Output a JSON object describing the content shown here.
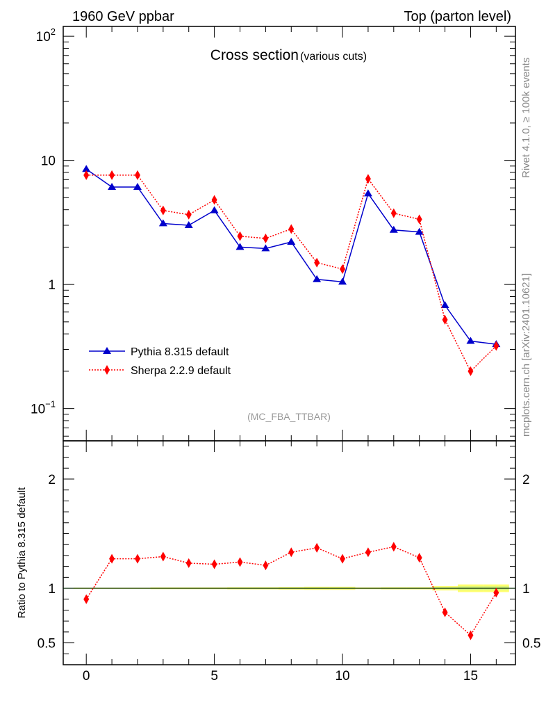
{
  "header": {
    "left": "1960 GeV ppbar",
    "right": "Top (parton level)"
  },
  "side_labels": {
    "rivet": "Rivet 4.1.0, ≥ 100k events",
    "mcplots": "mcplots.cern.ch [arXiv:2401.10621]"
  },
  "colors": {
    "pythia": "#0000cc",
    "sherpa": "#ff0000",
    "band": "#ffff55",
    "band_inner": "#c8f080",
    "reference": "#00aa00"
  },
  "chart_data": [
    {
      "type": "line",
      "title": "Cross section",
      "subtitle": "(various cuts)",
      "watermark": "(MC_FBA_TTBAR)",
      "yscale": "log",
      "ylim": [
        0.055,
        120
      ],
      "xlim": [
        -0.9,
        16.75
      ],
      "yticks": [
        {
          "value": 0.1,
          "base": "10",
          "exp": "−1"
        },
        {
          "value": 1,
          "base": "1",
          "exp": ""
        },
        {
          "value": 10,
          "base": "10",
          "exp": ""
        },
        {
          "value": 100,
          "base": "10",
          "exp": "2"
        }
      ],
      "legend_position": "lower-left",
      "x": [
        0,
        1,
        2,
        3,
        4,
        5,
        6,
        7,
        8,
        9,
        10,
        11,
        12,
        13,
        14,
        15,
        16
      ],
      "series": [
        {
          "name": "Pythia 8.315 default",
          "marker": "triangle",
          "line": "solid",
          "values": [
            8.5,
            6.1,
            6.1,
            3.1,
            3.0,
            3.95,
            2.0,
            1.95,
            2.2,
            1.1,
            1.05,
            5.4,
            2.75,
            2.65,
            0.68,
            0.35,
            0.33
          ]
        },
        {
          "name": "Sherpa 2.2.9 default",
          "marker": "diamond",
          "line": "dotted",
          "values": [
            7.6,
            7.6,
            7.6,
            3.95,
            3.65,
            4.8,
            2.45,
            2.35,
            2.8,
            1.5,
            1.33,
            7.1,
            3.75,
            3.35,
            0.52,
            0.2,
            0.32
          ]
        }
      ]
    },
    {
      "type": "line",
      "ylabel": "Ratio to Pythia 8.315 default",
      "ylim": [
        0.3,
        2.35
      ],
      "xlim": [
        -0.9,
        16.75
      ],
      "yticks": [
        0.5,
        1,
        2
      ],
      "ytick_labels": [
        "0.5",
        "1",
        "2"
      ],
      "xticks": [
        0,
        5,
        10,
        15
      ],
      "xtick_labels": [
        "0",
        "5",
        "10",
        "15"
      ],
      "reference": 1,
      "x": [
        0,
        1,
        2,
        3,
        4,
        5,
        6,
        7,
        8,
        9,
        10,
        11,
        12,
        13,
        14,
        15,
        16
      ],
      "band_halfwidth": [
        0.005,
        0.005,
        0.005,
        0.008,
        0.008,
        0.008,
        0.01,
        0.01,
        0.012,
        0.014,
        0.014,
        0.008,
        0.01,
        0.01,
        0.02,
        0.035,
        0.035
      ],
      "series": [
        {
          "name": "Sherpa 2.2.9 default",
          "values": [
            0.9,
            1.27,
            1.27,
            1.29,
            1.23,
            1.22,
            1.24,
            1.21,
            1.33,
            1.37,
            1.27,
            1.33,
            1.38,
            1.28,
            0.78,
            0.57,
            0.96
          ]
        }
      ]
    }
  ]
}
